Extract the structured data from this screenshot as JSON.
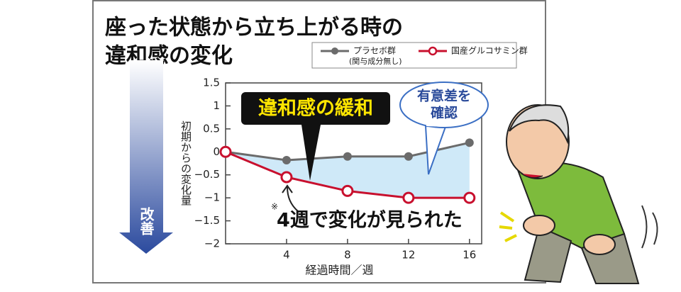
{
  "chart_data": {
    "type": "line",
    "title": [
      "座った状態から立ち上がる時の",
      "違和感の変化"
    ],
    "x": [
      0,
      4,
      8,
      12,
      16
    ],
    "series": [
      {
        "name": "プラセボ群",
        "note": "(関与成分無し)",
        "color": "#6b6b6b",
        "values": [
          0,
          -0.18,
          -0.1,
          -0.1,
          0.2
        ]
      },
      {
        "name": "国産グルコサミン群",
        "color": "#c8102e",
        "values": [
          0,
          -0.55,
          -0.85,
          -1.0,
          -1.0
        ]
      }
    ],
    "xlim": [
      0,
      16.8
    ],
    "xticks": [
      4,
      8,
      12,
      16
    ],
    "ylim": [
      -2,
      1.5
    ],
    "yticks": [
      1.5,
      1,
      0.5,
      0,
      {
        "value": -0.5,
        "label": "−0.5"
      },
      {
        "value": -1,
        "label": "−1"
      },
      {
        "value": -1.5,
        "label": "−1.5"
      },
      {
        "value": -2,
        "label": "−2"
      }
    ],
    "xlabel": "経過時間／週",
    "ylabel": "初期からの変化量",
    "improve_label": "改善",
    "annotations": {
      "relief": "違和感の緩和",
      "significant": [
        "有意差を",
        "確認"
      ],
      "mark": "※",
      "week4": "4週で変化が見られた"
    },
    "fill_color": "#cfe9f8"
  }
}
